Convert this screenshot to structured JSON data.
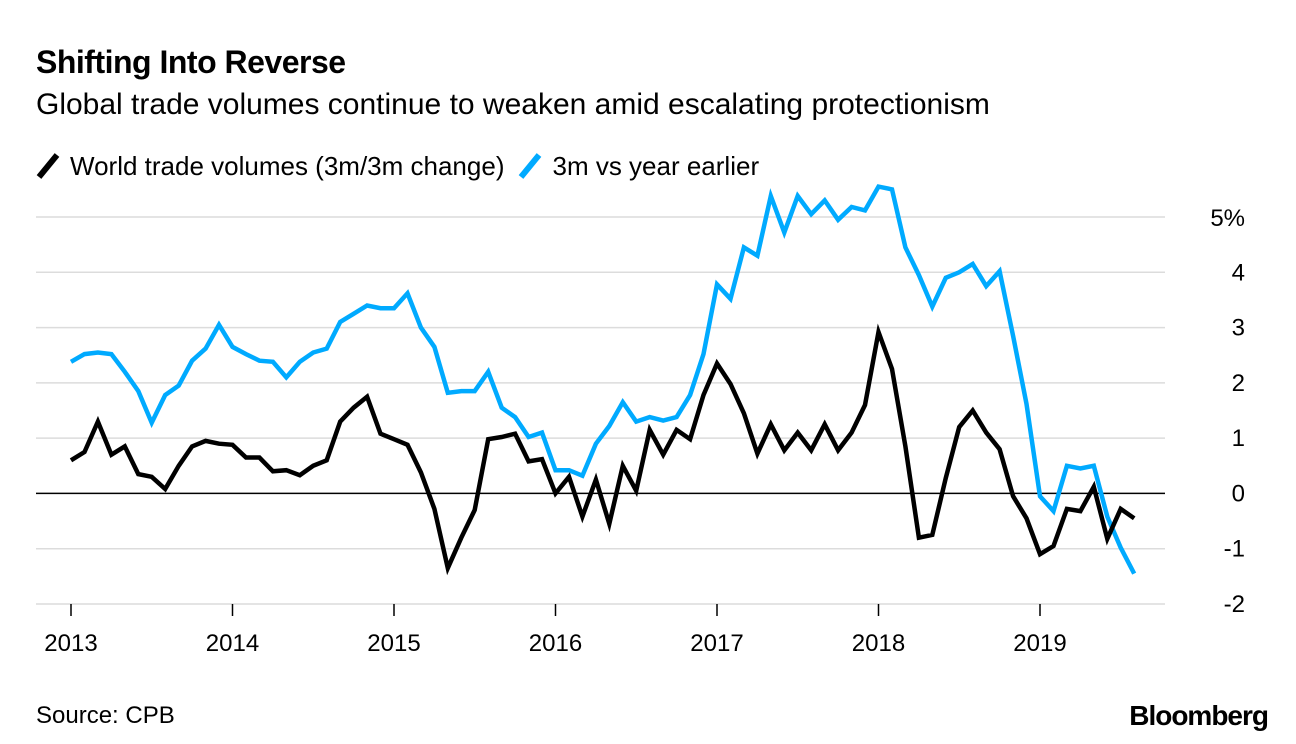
{
  "header": {
    "title": "Shifting Into Reverse",
    "subtitle": "Global trade volumes continue to weaken amid escalating protectionism"
  },
  "footer": {
    "source": "Source: CPB",
    "logo": "Bloomberg"
  },
  "colors": {
    "black_series": "#000000",
    "blue_series": "#00aaff",
    "grid": "#dcdcdc",
    "zero": "#000000"
  },
  "chart_data": {
    "type": "line",
    "title": "Shifting Into Reverse",
    "subtitle": "Global trade volumes continue to weaken amid escalating protectionism",
    "xlabel": "",
    "ylabel": "",
    "x_start": 2013.0,
    "x_step": 0.0833333,
    "xlim": [
      2013,
      2019.75
    ],
    "ylim": [
      -2,
      5
    ],
    "y_ticks": [
      5,
      4,
      3,
      2,
      1,
      0,
      -1,
      -2
    ],
    "y_tick_labels": [
      "5%",
      "4",
      "3",
      "2",
      "1",
      "0",
      "-1",
      "-2"
    ],
    "x_ticks": [
      2013,
      2014,
      2015,
      2016,
      2017,
      2018,
      2019
    ],
    "x_tick_labels": [
      "2013",
      "2014",
      "2015",
      "2016",
      "2017",
      "2018",
      "2019"
    ],
    "grid": true,
    "legend_position": "top-left",
    "series": [
      {
        "name": "World trade volumes (3m/3m change)",
        "color": "#000000",
        "values": [
          0.6,
          0.75,
          1.3,
          0.7,
          0.85,
          0.35,
          0.3,
          0.08,
          0.5,
          0.85,
          0.95,
          0.9,
          0.88,
          0.65,
          0.65,
          0.4,
          0.42,
          0.33,
          0.5,
          0.6,
          1.3,
          1.55,
          1.75,
          1.08,
          0.98,
          0.88,
          0.38,
          -0.28,
          -1.35,
          -0.8,
          -0.3,
          0.98,
          1.02,
          1.08,
          0.58,
          0.62,
          0.0,
          0.3,
          -0.42,
          0.25,
          -0.55,
          0.5,
          0.05,
          1.15,
          0.7,
          1.15,
          0.98,
          1.78,
          2.35,
          1.98,
          1.45,
          0.72,
          1.25,
          0.78,
          1.1,
          0.78,
          1.25,
          0.78,
          1.1,
          1.6,
          2.92,
          2.25,
          0.85,
          -0.8,
          -0.75,
          0.28,
          1.2,
          1.5,
          1.1,
          0.8,
          -0.05,
          -0.45,
          -1.1,
          -0.95,
          -0.28,
          -0.32,
          0.12,
          -0.82,
          -0.28,
          -0.45
        ]
      },
      {
        "name": "3m vs year earlier",
        "color": "#00aaff",
        "values": [
          2.38,
          2.52,
          2.55,
          2.52,
          2.2,
          1.85,
          1.28,
          1.78,
          1.95,
          2.4,
          2.62,
          3.05,
          2.65,
          2.52,
          2.4,
          2.38,
          2.1,
          2.38,
          2.55,
          2.62,
          3.1,
          3.25,
          3.4,
          3.35,
          3.35,
          3.62,
          3.0,
          2.65,
          1.82,
          1.85,
          1.85,
          2.2,
          1.55,
          1.38,
          1.02,
          1.1,
          0.42,
          0.42,
          0.32,
          0.9,
          1.22,
          1.65,
          1.3,
          1.38,
          1.32,
          1.38,
          1.78,
          2.52,
          3.78,
          3.52,
          4.45,
          4.3,
          5.38,
          4.72,
          5.38,
          5.05,
          5.3,
          4.95,
          5.18,
          5.12,
          5.55,
          5.5,
          4.45,
          3.95,
          3.38,
          3.9,
          4.0,
          4.15,
          3.75,
          4.02,
          2.85,
          1.62,
          -0.05,
          -0.32,
          0.5,
          0.45,
          0.5,
          -0.42,
          -0.98,
          -1.45
        ]
      }
    ]
  }
}
